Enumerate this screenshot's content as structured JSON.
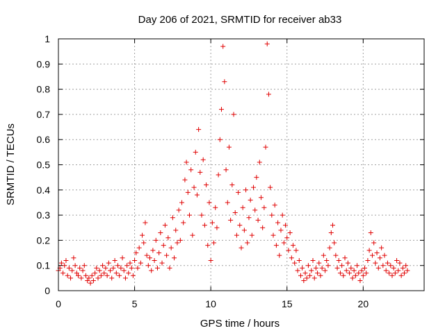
{
  "chart_data": {
    "type": "scatter",
    "title": "Day 206 of 2021, SRMTID for receiver ab33",
    "xlabel": "GPS time / hours",
    "ylabel": "SRMTID / TECUs",
    "xlim": [
      0,
      24
    ],
    "ylim": [
      0,
      1
    ],
    "xticks": [
      0,
      5,
      10,
      15,
      20
    ],
    "xtick_labels": [
      "0",
      "5",
      "10",
      "15",
      "20"
    ],
    "yticks": [
      0,
      0.1,
      0.2,
      0.3,
      0.4,
      0.5,
      0.6,
      0.7,
      0.8,
      0.9,
      1
    ],
    "ytick_labels": [
      "0",
      "0.1",
      "0.2",
      "0.3",
      "0.4",
      "0.5",
      "0.6",
      "0.7",
      "0.8",
      "0.9",
      "1"
    ],
    "grid": true,
    "marker": "plus",
    "color": "#e00000",
    "series": [
      {
        "name": "SRMTID",
        "points": [
          [
            0.0,
            0.08
          ],
          [
            0.1,
            0.09
          ],
          [
            0.2,
            0.11
          ],
          [
            0.3,
            0.07
          ],
          [
            0.4,
            0.1
          ],
          [
            0.5,
            0.12
          ],
          [
            0.6,
            0.06
          ],
          [
            0.7,
            0.09
          ],
          [
            0.8,
            0.05
          ],
          [
            0.9,
            0.08
          ],
          [
            1.0,
            0.13
          ],
          [
            1.1,
            0.1
          ],
          [
            1.2,
            0.07
          ],
          [
            1.3,
            0.06
          ],
          [
            1.4,
            0.09
          ],
          [
            1.5,
            0.05
          ],
          [
            1.6,
            0.08
          ],
          [
            1.7,
            0.1
          ],
          [
            1.8,
            0.06
          ],
          [
            1.9,
            0.04
          ],
          [
            2.0,
            0.05
          ],
          [
            2.1,
            0.03
          ],
          [
            2.2,
            0.06
          ],
          [
            2.3,
            0.04
          ],
          [
            2.4,
            0.07
          ],
          [
            2.5,
            0.09
          ],
          [
            2.6,
            0.05
          ],
          [
            2.7,
            0.08
          ],
          [
            2.8,
            0.06
          ],
          [
            2.9,
            0.1
          ],
          [
            3.0,
            0.07
          ],
          [
            3.1,
            0.09
          ],
          [
            3.2,
            0.06
          ],
          [
            3.3,
            0.11
          ],
          [
            3.4,
            0.08
          ],
          [
            3.5,
            0.05
          ],
          [
            3.6,
            0.09
          ],
          [
            3.7,
            0.12
          ],
          [
            3.8,
            0.07
          ],
          [
            3.9,
            0.1
          ],
          [
            4.0,
            0.06
          ],
          [
            4.1,
            0.09
          ],
          [
            4.2,
            0.13
          ],
          [
            4.3,
            0.08
          ],
          [
            4.4,
            0.05
          ],
          [
            4.5,
            0.1
          ],
          [
            4.6,
            0.07
          ],
          [
            4.7,
            0.11
          ],
          [
            4.8,
            0.09
          ],
          [
            4.9,
            0.06
          ],
          [
            5.0,
            0.12
          ],
          [
            5.1,
            0.15
          ],
          [
            5.2,
            0.09
          ],
          [
            5.3,
            0.17
          ],
          [
            5.4,
            0.11
          ],
          [
            5.5,
            0.22
          ],
          [
            5.6,
            0.19
          ],
          [
            5.7,
            0.27
          ],
          [
            5.8,
            0.14
          ],
          [
            5.9,
            0.1
          ],
          [
            6.0,
            0.13
          ],
          [
            6.1,
            0.08
          ],
          [
            6.2,
            0.16
          ],
          [
            6.3,
            0.12
          ],
          [
            6.4,
            0.2
          ],
          [
            6.5,
            0.09
          ],
          [
            6.6,
            0.15
          ],
          [
            6.7,
            0.23
          ],
          [
            6.8,
            0.11
          ],
          [
            6.9,
            0.18
          ],
          [
            7.0,
            0.26
          ],
          [
            7.1,
            0.14
          ],
          [
            7.2,
            0.21
          ],
          [
            7.3,
            0.09
          ],
          [
            7.4,
            0.17
          ],
          [
            7.5,
            0.29
          ],
          [
            7.6,
            0.13
          ],
          [
            7.7,
            0.24
          ],
          [
            7.8,
            0.19
          ],
          [
            7.9,
            0.32
          ],
          [
            8.0,
            0.2
          ],
          [
            8.1,
            0.35
          ],
          [
            8.2,
            0.27
          ],
          [
            8.3,
            0.44
          ],
          [
            8.4,
            0.51
          ],
          [
            8.5,
            0.39
          ],
          [
            8.6,
            0.3
          ],
          [
            8.7,
            0.48
          ],
          [
            8.8,
            0.22
          ],
          [
            8.9,
            0.41
          ],
          [
            9.0,
            0.55
          ],
          [
            9.1,
            0.38
          ],
          [
            9.2,
            0.64
          ],
          [
            9.3,
            0.47
          ],
          [
            9.4,
            0.3
          ],
          [
            9.5,
            0.52
          ],
          [
            9.6,
            0.26
          ],
          [
            9.7,
            0.42
          ],
          [
            9.8,
            0.18
          ],
          [
            9.9,
            0.35
          ],
          [
            10.0,
            0.12
          ],
          [
            10.1,
            0.27
          ],
          [
            10.2,
            0.19
          ],
          [
            10.3,
            0.33
          ],
          [
            10.4,
            0.25
          ],
          [
            10.5,
            0.46
          ],
          [
            10.6,
            0.6
          ],
          [
            10.7,
            0.72
          ],
          [
            10.8,
            0.97
          ],
          [
            10.9,
            0.83
          ],
          [
            11.0,
            0.48
          ],
          [
            11.1,
            0.35
          ],
          [
            11.2,
            0.57
          ],
          [
            11.3,
            0.28
          ],
          [
            11.4,
            0.42
          ],
          [
            11.5,
            0.7
          ],
          [
            11.6,
            0.31
          ],
          [
            11.7,
            0.22
          ],
          [
            11.8,
            0.39
          ],
          [
            11.9,
            0.26
          ],
          [
            12.0,
            0.17
          ],
          [
            12.1,
            0.33
          ],
          [
            12.2,
            0.24
          ],
          [
            12.3,
            0.4
          ],
          [
            12.4,
            0.19
          ],
          [
            12.5,
            0.29
          ],
          [
            12.6,
            0.36
          ],
          [
            12.7,
            0.22
          ],
          [
            12.8,
            0.41
          ],
          [
            12.9,
            0.32
          ],
          [
            13.0,
            0.45
          ],
          [
            13.1,
            0.28
          ],
          [
            13.2,
            0.51
          ],
          [
            13.3,
            0.37
          ],
          [
            13.4,
            0.25
          ],
          [
            13.5,
            0.33
          ],
          [
            13.6,
            0.57
          ],
          [
            13.7,
            0.98
          ],
          [
            13.8,
            0.78
          ],
          [
            13.9,
            0.41
          ],
          [
            14.0,
            0.3
          ],
          [
            14.1,
            0.22
          ],
          [
            14.2,
            0.34
          ],
          [
            14.3,
            0.18
          ],
          [
            14.4,
            0.27
          ],
          [
            14.5,
            0.14
          ],
          [
            14.6,
            0.24
          ],
          [
            14.7,
            0.3
          ],
          [
            14.8,
            0.19
          ],
          [
            14.9,
            0.26
          ],
          [
            15.0,
            0.21
          ],
          [
            15.1,
            0.16
          ],
          [
            15.2,
            0.23
          ],
          [
            15.3,
            0.13
          ],
          [
            15.4,
            0.18
          ],
          [
            15.5,
            0.11
          ],
          [
            15.6,
            0.16
          ],
          [
            15.7,
            0.08
          ],
          [
            15.8,
            0.12
          ],
          [
            15.9,
            0.06
          ],
          [
            16.0,
            0.09
          ],
          [
            16.1,
            0.04
          ],
          [
            16.2,
            0.07
          ],
          [
            16.3,
            0.05
          ],
          [
            16.4,
            0.1
          ],
          [
            16.5,
            0.06
          ],
          [
            16.6,
            0.08
          ],
          [
            16.7,
            0.12
          ],
          [
            16.8,
            0.05
          ],
          [
            16.9,
            0.09
          ],
          [
            17.0,
            0.07
          ],
          [
            17.1,
            0.11
          ],
          [
            17.2,
            0.06
          ],
          [
            17.3,
            0.09
          ],
          [
            17.4,
            0.14
          ],
          [
            17.5,
            0.08
          ],
          [
            17.6,
            0.12
          ],
          [
            17.7,
            0.1
          ],
          [
            17.8,
            0.17
          ],
          [
            17.9,
            0.23
          ],
          [
            18.0,
            0.26
          ],
          [
            18.1,
            0.19
          ],
          [
            18.2,
            0.14
          ],
          [
            18.3,
            0.09
          ],
          [
            18.4,
            0.12
          ],
          [
            18.5,
            0.07
          ],
          [
            18.6,
            0.1
          ],
          [
            18.7,
            0.06
          ],
          [
            18.8,
            0.13
          ],
          [
            18.9,
            0.08
          ],
          [
            19.0,
            0.11
          ],
          [
            19.1,
            0.07
          ],
          [
            19.2,
            0.09
          ],
          [
            19.3,
            0.05
          ],
          [
            19.4,
            0.08
          ],
          [
            19.5,
            0.06
          ],
          [
            19.6,
            0.1
          ],
          [
            19.7,
            0.07
          ],
          [
            19.8,
            0.04
          ],
          [
            19.9,
            0.08
          ],
          [
            20.0,
            0.06
          ],
          [
            20.1,
            0.09
          ],
          [
            20.2,
            0.07
          ],
          [
            20.3,
            0.12
          ],
          [
            20.4,
            0.16
          ],
          [
            20.5,
            0.23
          ],
          [
            20.6,
            0.14
          ],
          [
            20.7,
            0.19
          ],
          [
            20.8,
            0.11
          ],
          [
            20.9,
            0.15
          ],
          [
            21.0,
            0.09
          ],
          [
            21.1,
            0.13
          ],
          [
            21.2,
            0.17
          ],
          [
            21.3,
            0.1
          ],
          [
            21.4,
            0.14
          ],
          [
            21.5,
            0.08
          ],
          [
            21.6,
            0.11
          ],
          [
            21.7,
            0.07
          ],
          [
            21.8,
            0.1
          ],
          [
            21.9,
            0.06
          ],
          [
            22.0,
            0.09
          ],
          [
            22.1,
            0.07
          ],
          [
            22.2,
            0.12
          ],
          [
            22.3,
            0.08
          ],
          [
            22.4,
            0.11
          ],
          [
            22.5,
            0.06
          ],
          [
            22.6,
            0.09
          ],
          [
            22.7,
            0.07
          ],
          [
            22.8,
            0.1
          ],
          [
            22.9,
            0.08
          ]
        ]
      }
    ]
  }
}
